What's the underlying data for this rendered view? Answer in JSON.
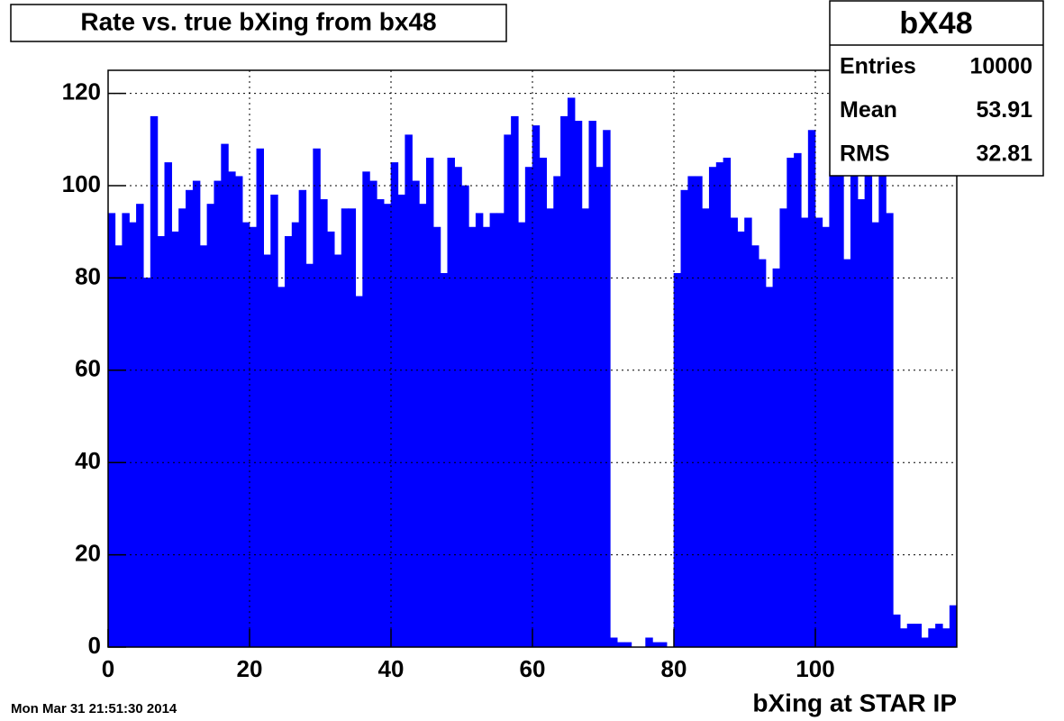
{
  "chart_data": {
    "type": "histogram",
    "title": "Rate vs. true bXing from bx48",
    "x_label": "bXing at STAR IP",
    "timestamp": "Mon Mar 31 21:51:30 2014",
    "color": "#0000ff",
    "grid": true,
    "bins": [
      0,
      1,
      2,
      3,
      4,
      5,
      6,
      7,
      8,
      9,
      10,
      11,
      12,
      13,
      14,
      15,
      16,
      17,
      18,
      19,
      20,
      21,
      22,
      23,
      24,
      25,
      26,
      27,
      28,
      29,
      30,
      31,
      32,
      33,
      34,
      35,
      36,
      37,
      38,
      39,
      40,
      41,
      42,
      43,
      44,
      45,
      46,
      47,
      48,
      49,
      50,
      51,
      52,
      53,
      54,
      55,
      56,
      57,
      58,
      59,
      60,
      61,
      62,
      63,
      64,
      65,
      66,
      67,
      68,
      69,
      70,
      71,
      72,
      73,
      74,
      75,
      76,
      77,
      78,
      79,
      80,
      81,
      82,
      83,
      84,
      85,
      86,
      87,
      88,
      89,
      90,
      91,
      92,
      93,
      94,
      95,
      96,
      97,
      98,
      99,
      100,
      101,
      102,
      103,
      104,
      105,
      106,
      107,
      108,
      109,
      110,
      111,
      112,
      113,
      114,
      115,
      116,
      117,
      118,
      119,
      120
    ],
    "counts": [
      94,
      87,
      94,
      92,
      96,
      80,
      115,
      89,
      105,
      90,
      95,
      99,
      101,
      87,
      96,
      101,
      109,
      103,
      102,
      92,
      91,
      108,
      85,
      98,
      78,
      89,
      92,
      99,
      83,
      108,
      97,
      90,
      85,
      95,
      95,
      76,
      103,
      101,
      97,
      96,
      105,
      98,
      111,
      101,
      96,
      106,
      91,
      81,
      106,
      104,
      100,
      91,
      94,
      91,
      94,
      94,
      111,
      115,
      92,
      104,
      113,
      106,
      95,
      102,
      115,
      119,
      114,
      95,
      114,
      104,
      112,
      2,
      1,
      1,
      0,
      0,
      2,
      1,
      1,
      0,
      81,
      99,
      102,
      102,
      95,
      104,
      105,
      106,
      93,
      90,
      93,
      87,
      84,
      78,
      82,
      95,
      106,
      107,
      93,
      112,
      93,
      91,
      103,
      110,
      84,
      107,
      97,
      103,
      92,
      110,
      94,
      7,
      4,
      5,
      5,
      2,
      4,
      5,
      4,
      9
    ],
    "xlim": [
      0,
      120
    ],
    "xticks": [
      0,
      20,
      40,
      60,
      80,
      100
    ],
    "ylim": [
      0,
      125
    ],
    "yticks": [
      0,
      20,
      40,
      60,
      80,
      100,
      120
    ],
    "stats": {
      "title": "bX48",
      "rows": [
        {
          "label": "Entries",
          "value": 10000
        },
        {
          "label": "Mean",
          "value": 53.91
        },
        {
          "label": "RMS",
          "value": 32.81
        }
      ]
    }
  }
}
